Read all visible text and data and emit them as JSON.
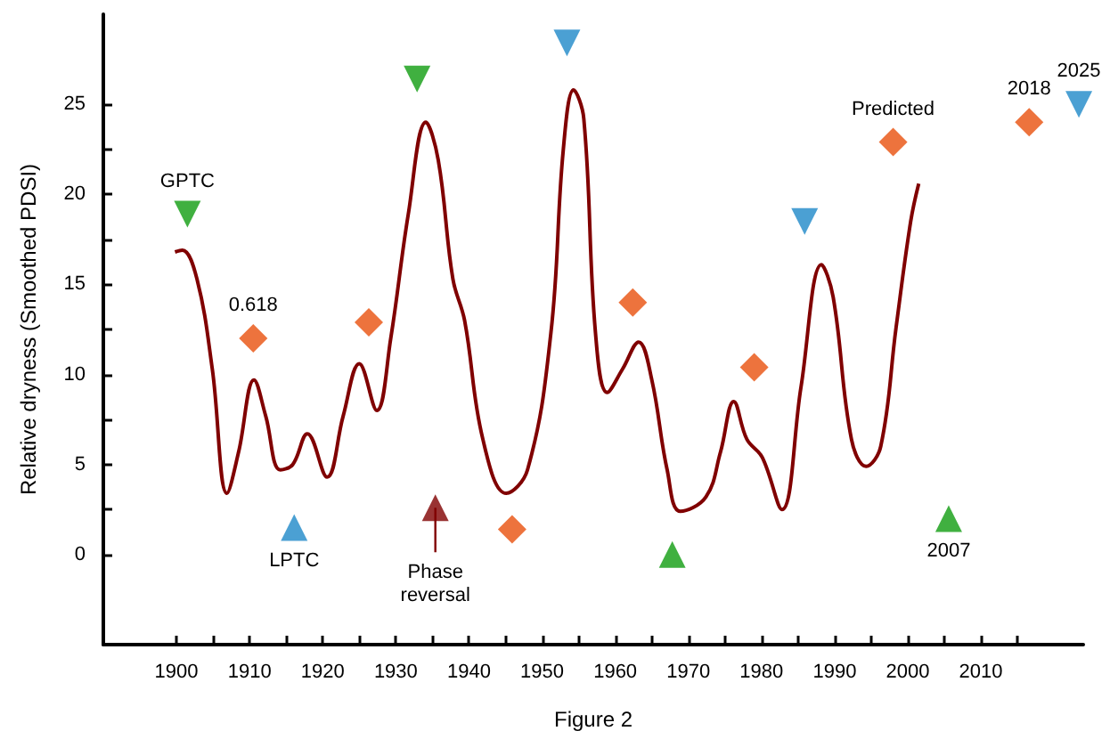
{
  "chart_data": {
    "type": "line",
    "xlabel": "Figure 2",
    "ylabel": "Relative dryness (Smoothed PDSI)",
    "xlim": [
      1890,
      2024
    ],
    "ylim": [
      -5,
      30
    ],
    "xticks": [
      1900,
      {
        "value": 1905,
        "label": null
      },
      1910,
      {
        "value": 1915,
        "label": null
      },
      1920,
      {
        "value": 1925,
        "label": null
      },
      1930,
      {
        "value": 1935,
        "label": null
      },
      1940,
      {
        "value": 1945,
        "label": null
      },
      1950,
      {
        "value": 1955,
        "label": null
      },
      1960,
      {
        "value": 1965,
        "label": null
      },
      1970,
      {
        "value": 1975,
        "label": null
      },
      1980,
      {
        "value": 1985,
        "label": null
      },
      1990,
      {
        "value": 1995,
        "label": null
      },
      2000,
      {
        "value": 2005,
        "label": null
      },
      2010,
      {
        "value": 2015,
        "label": null
      }
    ],
    "yticks": [
      0,
      {
        "value": 2.5,
        "label": null
      },
      5,
      {
        "value": 7.5,
        "label": null
      },
      10,
      {
        "value": 12.5,
        "label": null
      },
      15,
      {
        "value": 17.5,
        "label": null
      },
      20,
      {
        "value": 22.5,
        "label": null
      },
      25
    ],
    "grid": false,
    "series": [
      {
        "color": "#800000",
        "marker": "none",
        "line_style": "solid",
        "x": [
          1899.8,
          1900.8,
          1902.8,
          1904.9,
          1906.9,
          1908.5,
          1910.6,
          1912.2,
          1914.2,
          1915.9,
          1917.9,
          1920.6,
          1922.8,
          1925.0,
          1927.4,
          1929.3,
          1931.7,
          1934.1,
          1935.8,
          1937.8,
          1939.4,
          1941.9,
          1945.1,
          1948.0,
          1951.2,
          1952.9,
          1954.3,
          1955.7,
          1957.3,
          1958.9,
          1961.0,
          1963.2,
          1965.0,
          1967.1,
          1968.9,
          1972.4,
          1974.4,
          1976.2,
          1978.0,
          1980.1,
          1982.8,
          1985.4,
          1988.2,
          1989.8,
          1992.3,
          1994.3,
          1996.3,
          1998.4,
          2000.4,
          2001.5
        ],
        "values": [
          16.8,
          16.9,
          15.3,
          10.3,
          3.4,
          5.7,
          9.7,
          7.7,
          4.7,
          5.0,
          6.7,
          4.3,
          7.7,
          10.6,
          8.0,
          12.0,
          18.9,
          24.0,
          21.9,
          15.3,
          13.0,
          6.4,
          3.4,
          4.7,
          12.3,
          22.5,
          25.8,
          24.2,
          12.3,
          9.0,
          10.3,
          11.8,
          9.7,
          4.7,
          2.4,
          3.2,
          5.7,
          8.5,
          6.4,
          5.4,
          2.5,
          9.3,
          16.1,
          14.3,
          6.4,
          4.9,
          6.0,
          12.6,
          18.5,
          20.6
        ]
      },
      {
        "type": "scatter",
        "color": "#109c10",
        "marker": "triangle-down",
        "x": [
          1901.5,
          1932.9
        ],
        "values": [
          18.9,
          26.4
        ]
      },
      {
        "type": "scatter",
        "color": "#1e88c8",
        "marker": "triangle-down",
        "x": [
          1953.4,
          1985.9,
          2023.4
        ],
        "values": [
          28.4,
          18.5,
          25.0
        ]
      },
      {
        "type": "scatter",
        "color": "#1e88c8",
        "marker": "triangle",
        "x": [
          1916.1
        ],
        "values": [
          1.5
        ]
      },
      {
        "type": "scatter",
        "color": "#109c10",
        "marker": "triangle",
        "x": [
          1967.8,
          2005.6
        ],
        "values": [
          0,
          2.0
        ]
      },
      {
        "type": "scatter",
        "color": "#800000",
        "marker": "triangle",
        "line_style": "solid",
        "x": [
          1935.4
        ],
        "values": [
          2.6
        ]
      },
      {
        "type": "scatter",
        "color": "#e8500c",
        "marker": "diamond",
        "x": [
          1910.5,
          1926.3,
          1945.9,
          1962.4,
          1979.0,
          1998.0,
          2016.6
        ],
        "values": [
          12.0,
          12.9,
          1.4,
          14.0,
          10.4,
          22.9,
          24.0
        ]
      }
    ],
    "annotations": [
      {
        "text": "GPTC",
        "x": 1901.5,
        "y": 18.9
      },
      {
        "text": "0.618",
        "x": 1910.5,
        "y": 12.0
      },
      {
        "text": "LPTC",
        "x": 1916.1,
        "y": 1.5
      },
      {
        "text": "Phase\nreversal",
        "x": 1935.4,
        "y": 2.6
      },
      {
        "text": "Predicted",
        "x": 1998.0,
        "y": 22.9
      },
      {
        "text": "2018",
        "x": 2016.6,
        "y": 24.0
      },
      {
        "text": "2025",
        "x": 2023.4,
        "y": 25.0
      },
      {
        "text": "2007",
        "x": 2005.6,
        "y": 2.0
      }
    ]
  }
}
